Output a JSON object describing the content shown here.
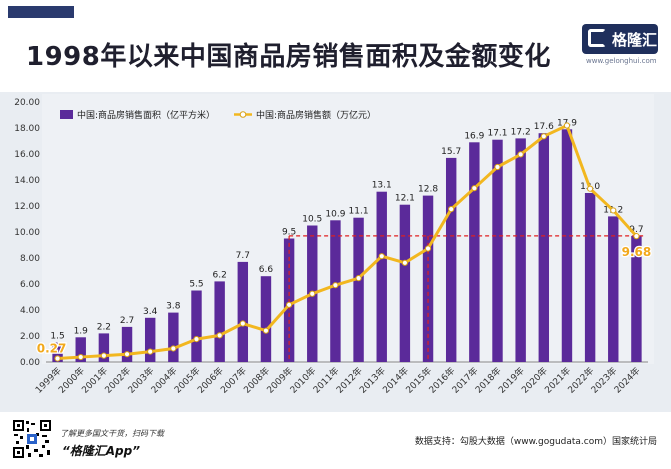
{
  "title": "1998年以来中国商品房销售面积及金额变化",
  "brand": {
    "name": "格隆汇",
    "url": "www.gelonghui.com",
    "app_name": "“格隆汇App”",
    "promo_text": "了解更多国文干货，扫码下载"
  },
  "source_text": "数据支持：勾股大数据（www.gogudata.com）国家统计局",
  "colors": {
    "bar": "#5b2a9a",
    "line": "#f2b71f",
    "marker_fill": "#ffffff",
    "reference_line": "#e02020",
    "highlight_label": "#f2a91c"
  },
  "chart_data": {
    "type": "bar",
    "categories": [
      "1999年",
      "2000年",
      "2001年",
      "2002年",
      "2003年",
      "2004年",
      "2005年",
      "2006年",
      "2007年",
      "2008年",
      "2009年",
      "2010年",
      "2011年",
      "2012年",
      "2013年",
      "2014年",
      "2015年",
      "2016年",
      "2017年",
      "2018年",
      "2019年",
      "2020年",
      "2021年",
      "2022年",
      "2023年",
      "2024年"
    ],
    "y_ticks": [
      "0.00",
      "2.00",
      "4.00",
      "6.00",
      "8.00",
      "10.00",
      "12.00",
      "14.00",
      "16.00",
      "18.00",
      "20.00"
    ],
    "ylim": [
      0,
      20
    ],
    "grid": false,
    "legend_position": "top-left",
    "series": [
      {
        "name": "中国:商品房销售面积（亿平方米）",
        "type": "bar",
        "values": [
          1.5,
          1.9,
          2.2,
          2.7,
          3.4,
          3.8,
          5.5,
          6.2,
          7.7,
          6.6,
          9.5,
          10.5,
          10.9,
          11.1,
          13.1,
          12.1,
          12.8,
          15.7,
          16.9,
          17.1,
          17.2,
          17.6,
          17.9,
          13.0,
          11.2,
          9.7
        ],
        "labels": [
          "1.5",
          "1.9",
          "2.2",
          "2.7",
          "3.4",
          "3.8",
          "5.5",
          "6.2",
          "7.7",
          "6.6",
          "9.5",
          "10.5",
          "10.9",
          "11.1",
          "13.1",
          "12.1",
          "12.8",
          "15.7",
          "16.9",
          "17.1",
          "17.2",
          "17.6",
          "17.9",
          "13.0",
          "11.2",
          "9.7"
        ]
      },
      {
        "name": "中国:商品房销售额（万亿元）",
        "type": "line",
        "values": [
          0.27,
          0.38,
          0.49,
          0.6,
          0.8,
          1.04,
          1.76,
          2.05,
          2.96,
          2.41,
          4.4,
          5.25,
          5.91,
          6.45,
          8.14,
          7.63,
          8.73,
          11.76,
          13.37,
          15.0,
          15.97,
          17.36,
          18.19,
          13.33,
          11.66,
          9.68
        ],
        "labels": [
          {
            "index": 0,
            "text": "0.27"
          },
          {
            "index": 25,
            "text": "9.68"
          }
        ]
      }
    ],
    "reference_lines": {
      "horizontal_y": 9.7,
      "vertical_at": [
        "2009年",
        "2015年"
      ]
    }
  }
}
